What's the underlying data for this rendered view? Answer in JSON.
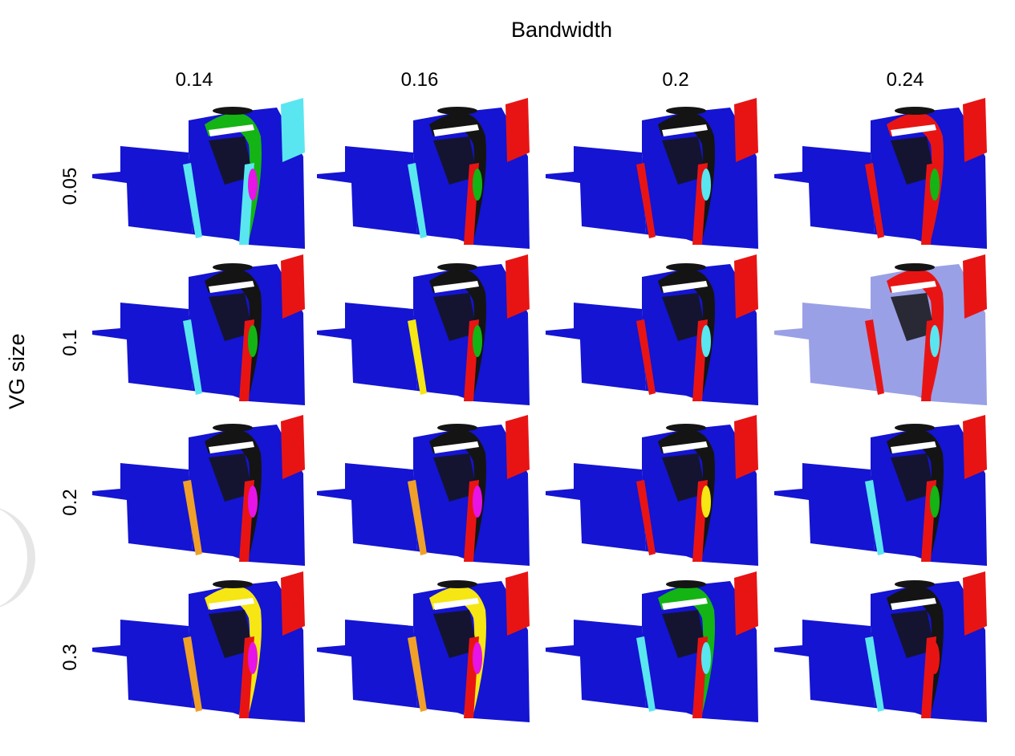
{
  "figure": {
    "column_axis_title": "Bandwidth",
    "row_axis_title": "VG size",
    "columns": [
      "0.14",
      "0.16",
      "0.2",
      "0.24"
    ],
    "rows": [
      "0.05",
      "0.1",
      "0.2",
      "0.3"
    ]
  },
  "palette": {
    "blue": "#1414d2",
    "red": "#e81414",
    "cyan": "#5ae6f0",
    "green": "#14b414",
    "yellow": "#f5e614",
    "magenta": "#e614e6",
    "orange": "#f0a028",
    "black": "#141414",
    "pale_blue": "#9aa0e6"
  }
}
